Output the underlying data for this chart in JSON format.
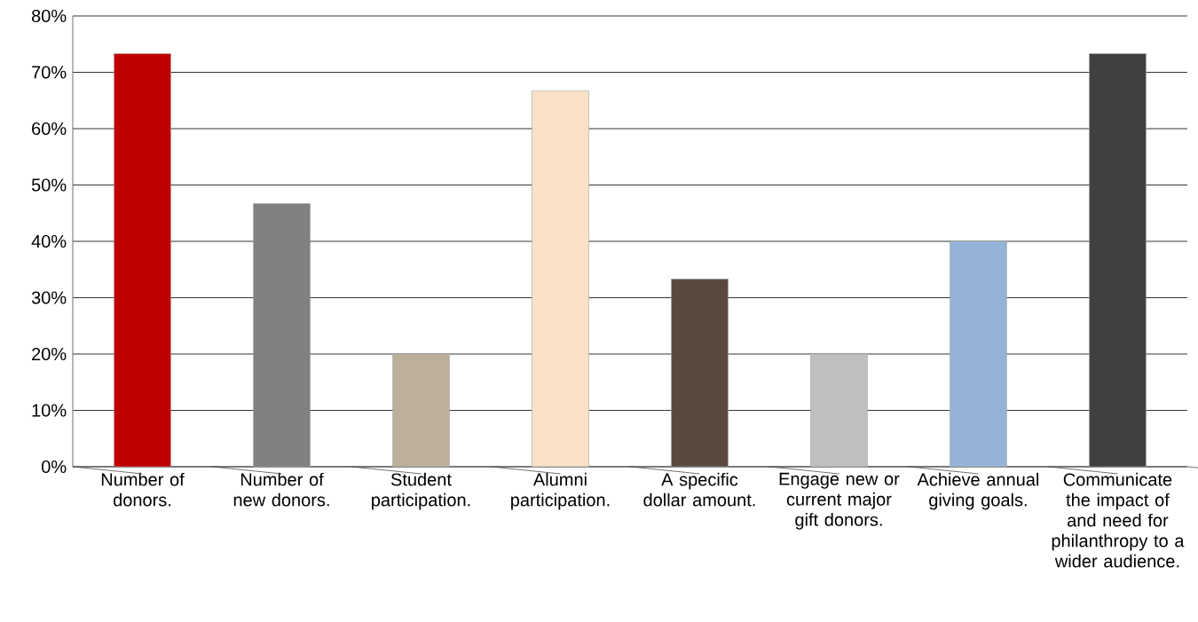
{
  "chart_data": {
    "type": "bar",
    "categories": [
      "Number of donors.",
      "Number of new donors.",
      "Student participation.",
      "Alumni participation.",
      "A specific dollar amount.",
      "Engage new or current major gift donors.",
      "Achieve annual giving goals.",
      "Communicate the impact of and need for philanthropy to a wider audience."
    ],
    "values": [
      73.3,
      46.7,
      20,
      66.7,
      33.3,
      20,
      40,
      73.3
    ],
    "colors": [
      "#c00000",
      "#808080",
      "#bcb09c",
      "#f8e1c6",
      "#594a40",
      "#bfbfbf",
      "#95b3d7",
      "#404040"
    ],
    "ylim": [
      0,
      80
    ],
    "yticks": [
      {
        "value": 0,
        "label": "0%"
      },
      {
        "value": 10,
        "label": "10%"
      },
      {
        "value": 20,
        "label": "20%"
      },
      {
        "value": 30,
        "label": "30%"
      },
      {
        "value": 40,
        "label": "40%"
      },
      {
        "value": 50,
        "label": "50%"
      },
      {
        "value": 60,
        "label": "60%"
      },
      {
        "value": 70,
        "label": "70%"
      },
      {
        "value": 80,
        "label": "80%"
      }
    ],
    "grid": "y"
  }
}
